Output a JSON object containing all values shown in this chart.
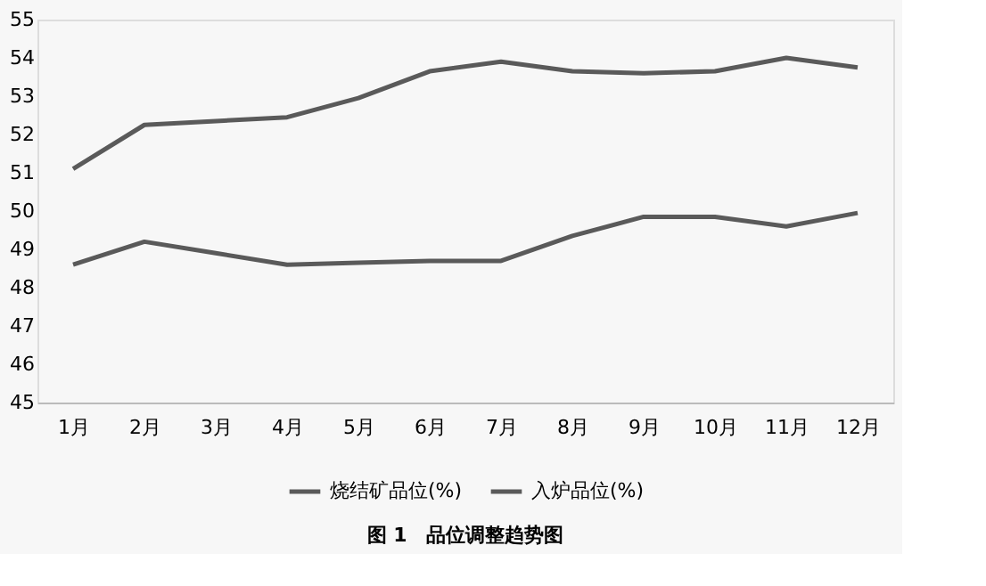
{
  "chart_data": {
    "type": "line",
    "categories": [
      "1月",
      "2月",
      "3月",
      "4月",
      "5月",
      "6月",
      "7月",
      "8月",
      "9月",
      "10月",
      "11月",
      "12月"
    ],
    "series": [
      {
        "name": "烧结矿品位(%)",
        "color": "#5a5a5a",
        "values": [
          51.1,
          52.25,
          52.35,
          52.45,
          52.95,
          53.65,
          53.9,
          53.65,
          53.6,
          53.65,
          54.0,
          53.75
        ]
      },
      {
        "name": "入炉品位(%)",
        "color": "#5a5a5a",
        "values": [
          48.6,
          49.2,
          48.9,
          48.6,
          48.65,
          48.7,
          48.7,
          49.35,
          49.85,
          49.85,
          49.6,
          49.95
        ]
      }
    ],
    "ylim": [
      45,
      55
    ],
    "yticks": [
      45,
      46,
      47,
      48,
      49,
      50,
      51,
      52,
      53,
      54,
      55
    ],
    "grid": false,
    "legend": "bottom",
    "marker": "none",
    "line_style": "solid",
    "annotations": [
      "图 1　品位调整趋势图"
    ]
  }
}
